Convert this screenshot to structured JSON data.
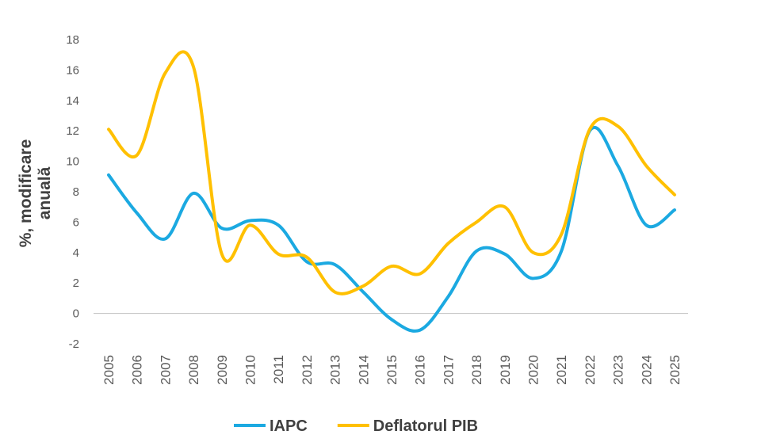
{
  "chart_data": {
    "type": "line",
    "ylabel": "%, modificare anuală",
    "categories": [
      "2005",
      "2006",
      "2007",
      "2008",
      "2009",
      "2010",
      "2011",
      "2012",
      "2013",
      "2014",
      "2015",
      "2016",
      "2017",
      "2018",
      "2019",
      "2020",
      "2021",
      "2022",
      "2023",
      "2024",
      "2025"
    ],
    "series": [
      {
        "name": "IAPC",
        "color": "#1ba9e1",
        "values": [
          9.1,
          6.6,
          4.9,
          7.9,
          5.6,
          6.1,
          5.8,
          3.4,
          3.2,
          1.4,
          -0.4,
          -1.1,
          1.1,
          4.1,
          3.9,
          2.3,
          4.1,
          12.0,
          9.7,
          5.8,
          6.8
        ]
      },
      {
        "name": "Deflatorul PIB",
        "color": "#ffc000",
        "values": [
          12.1,
          10.4,
          15.8,
          16.2,
          3.9,
          5.8,
          3.9,
          3.7,
          1.4,
          1.8,
          3.1,
          2.6,
          4.6,
          6.0,
          7.0,
          4.0,
          5.2,
          12.1,
          12.3,
          9.7,
          7.8
        ]
      }
    ],
    "ylim": [
      -2,
      18
    ],
    "yticks": [
      -2,
      0,
      2,
      4,
      6,
      8,
      10,
      12,
      14,
      16,
      18
    ],
    "grid": false,
    "smooth": true,
    "legend": "bottom"
  }
}
